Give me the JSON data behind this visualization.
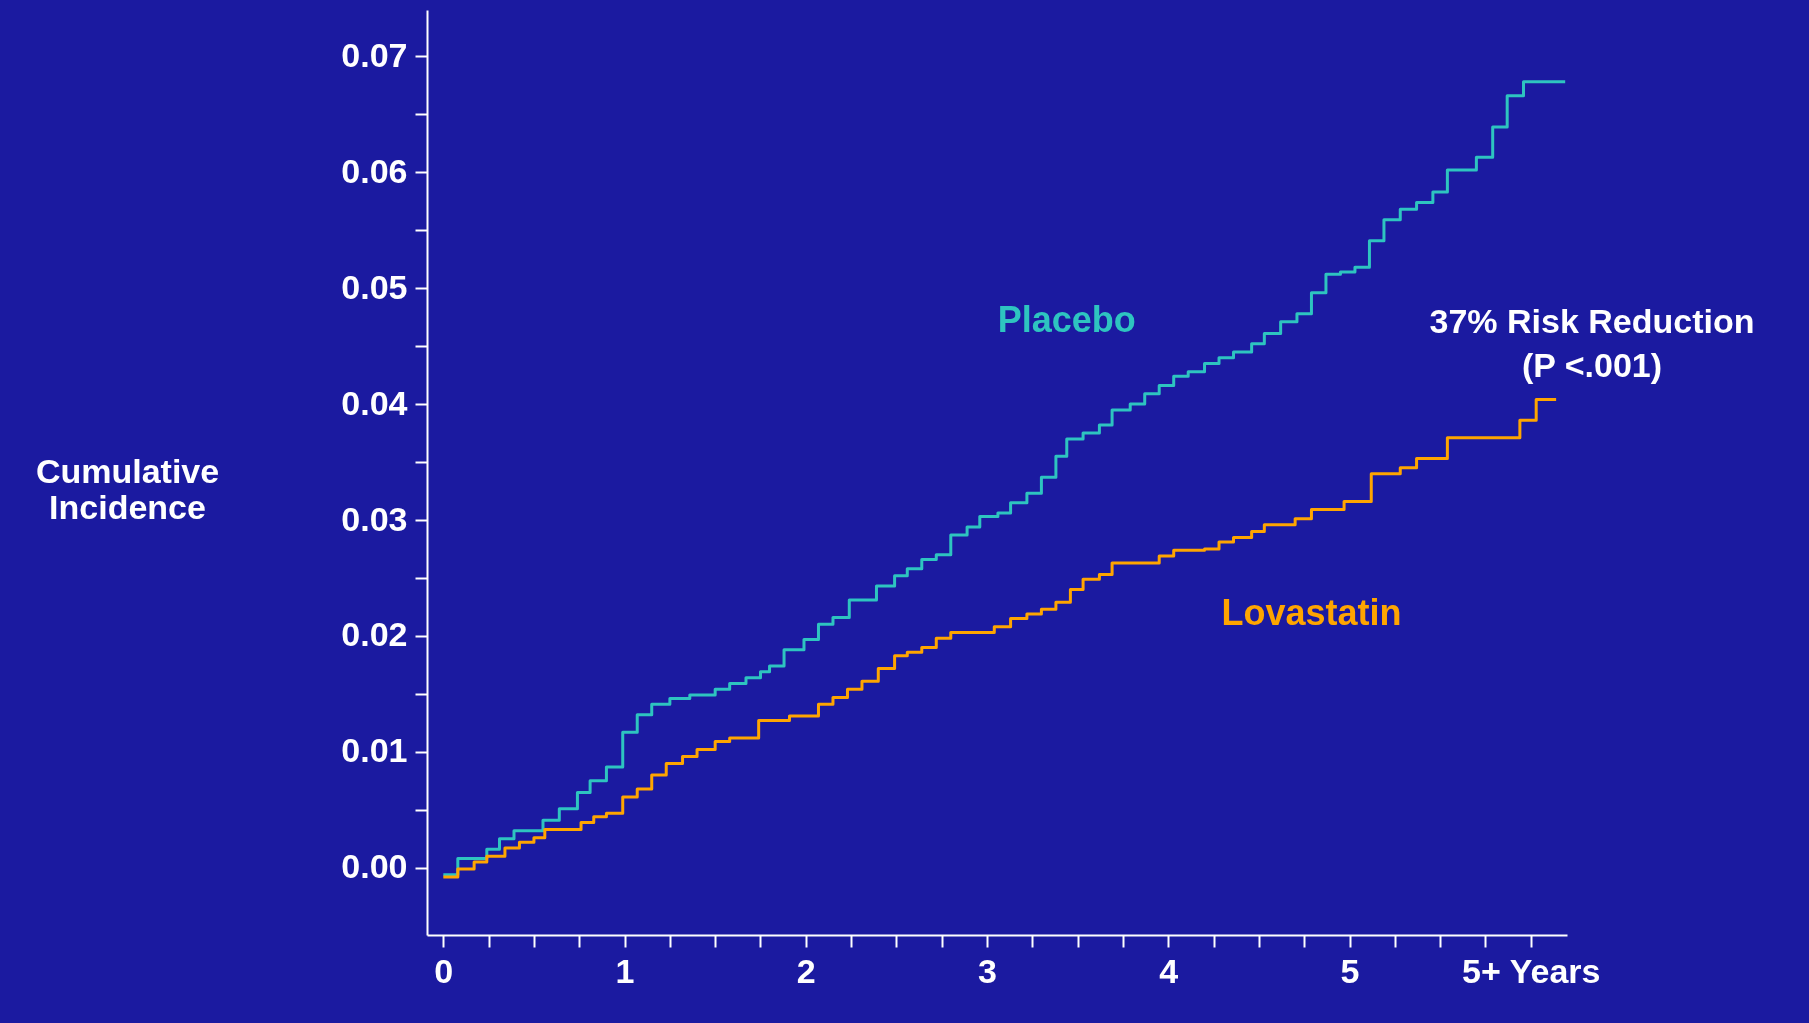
{
  "chart_data": {
    "type": "step",
    "ylabel": "Cumulative Incidence",
    "annotations": [
      "37% Risk Reduction\n(P <.001)"
    ],
    "xlim": [
      -0.09,
      6.2
    ],
    "ylim": [
      -0.0058,
      0.074
    ],
    "xticks": [
      0,
      {
        "value": 0.25,
        "label": null
      },
      {
        "value": 0.5,
        "label": null
      },
      {
        "value": 0.75,
        "label": null
      },
      1,
      {
        "value": 1.25,
        "label": null
      },
      {
        "value": 1.5,
        "label": null
      },
      {
        "value": 1.75,
        "label": null
      },
      2,
      {
        "value": 2.25,
        "label": null
      },
      {
        "value": 2.5,
        "label": null
      },
      {
        "value": 2.75,
        "label": null
      },
      3,
      {
        "value": 3.25,
        "label": null
      },
      {
        "value": 3.5,
        "label": null
      },
      {
        "value": 3.75,
        "label": null
      },
      4,
      {
        "value": 4.25,
        "label": null
      },
      {
        "value": 4.5,
        "label": null
      },
      {
        "value": 4.75,
        "label": null
      },
      5,
      {
        "value": 5.25,
        "label": null
      },
      {
        "value": 5.5,
        "label": null
      },
      {
        "value": 5.75,
        "label": null
      },
      {
        "value": 6,
        "label": "5+ Years"
      }
    ],
    "yticks": [
      {
        "value": 0,
        "label": "0.00"
      },
      {
        "value": 0.005,
        "label": null
      },
      {
        "value": 0.01,
        "label": "0.01"
      },
      {
        "value": 0.015,
        "label": null
      },
      {
        "value": 0.02,
        "label": "0.02"
      },
      {
        "value": 0.025,
        "label": null
      },
      {
        "value": 0.03,
        "label": "0.03"
      },
      {
        "value": 0.035,
        "label": null
      },
      {
        "value": 0.04,
        "label": "0.04"
      },
      {
        "value": 0.045,
        "label": null
      },
      {
        "value": 0.05,
        "label": "0.05"
      },
      {
        "value": 0.055,
        "label": null
      },
      {
        "value": 0.06,
        "label": "0.06"
      },
      {
        "value": 0.065,
        "label": null
      },
      {
        "value": 0.07,
        "label": "0.07"
      }
    ],
    "grid": false,
    "series": [
      {
        "name": "Placebo",
        "color": "#2ec4c0",
        "x": [
          0,
          0.08,
          0.24,
          0.31,
          0.39,
          0.55,
          0.64,
          0.74,
          0.81,
          0.9,
          0.99,
          1.07,
          1.15,
          1.25,
          1.36,
          1.5,
          1.58,
          1.67,
          1.75,
          1.8,
          1.88,
          1.99,
          2.07,
          2.15,
          2.24,
          2.39,
          2.49,
          2.56,
          2.64,
          2.72,
          2.8,
          2.89,
          2.96,
          3.06,
          3.13,
          3.22,
          3.3,
          3.38,
          3.44,
          3.53,
          3.62,
          3.69,
          3.79,
          3.87,
          3.95,
          4.03,
          4.11,
          4.2,
          4.28,
          4.36,
          4.46,
          4.53,
          4.62,
          4.71,
          4.79,
          4.87,
          4.95,
          5.03,
          5.11,
          5.19,
          5.28,
          5.37,
          5.46,
          5.54,
          5.7,
          5.79,
          5.87,
          5.96,
          6.19
        ],
        "values": [
          -0.0006,
          0.0008,
          0.0016,
          0.0025,
          0.0032,
          0.0041,
          0.0051,
          0.0065,
          0.0075,
          0.0087,
          0.0117,
          0.0132,
          0.0141,
          0.0146,
          0.0149,
          0.0154,
          0.0159,
          0.0164,
          0.0169,
          0.0174,
          0.0188,
          0.0197,
          0.021,
          0.0216,
          0.0231,
          0.0243,
          0.0252,
          0.0258,
          0.0266,
          0.027,
          0.0287,
          0.0294,
          0.0303,
          0.0306,
          0.0315,
          0.0323,
          0.0337,
          0.0355,
          0.037,
          0.0375,
          0.0382,
          0.0395,
          0.04,
          0.0409,
          0.0416,
          0.0424,
          0.0428,
          0.0435,
          0.044,
          0.0445,
          0.0452,
          0.0461,
          0.0471,
          0.0478,
          0.0496,
          0.0512,
          0.0514,
          0.0518,
          0.0541,
          0.0559,
          0.0568,
          0.0574,
          0.0583,
          0.0602,
          0.0613,
          0.0639,
          0.0666,
          0.0678,
          0.0678
        ]
      },
      {
        "name": "Lovastatin",
        "color": "#ffa500",
        "x": [
          0,
          0.08,
          0.17,
          0.24,
          0.34,
          0.42,
          0.5,
          0.56,
          0.76,
          0.83,
          0.9,
          0.99,
          1.07,
          1.15,
          1.23,
          1.32,
          1.4,
          1.5,
          1.58,
          1.74,
          1.91,
          2.07,
          2.15,
          2.23,
          2.31,
          2.4,
          2.49,
          2.56,
          2.64,
          2.72,
          2.8,
          3.04,
          3.13,
          3.22,
          3.3,
          3.38,
          3.46,
          3.53,
          3.62,
          3.69,
          3.95,
          4.03,
          4.2,
          4.28,
          4.36,
          4.46,
          4.53,
          4.7,
          4.79,
          4.97,
          5.12,
          5.28,
          5.37,
          5.54,
          5.94,
          6.03,
          6.14
        ],
        "values": [
          -0.0008,
          -0.0001,
          0.0005,
          0.001,
          0.0017,
          0.0022,
          0.0026,
          0.0033,
          0.0039,
          0.0044,
          0.0047,
          0.0061,
          0.0068,
          0.008,
          0.009,
          0.0096,
          0.0102,
          0.0109,
          0.0112,
          0.0127,
          0.0131,
          0.0141,
          0.0147,
          0.0154,
          0.0161,
          0.0172,
          0.0183,
          0.0186,
          0.019,
          0.0198,
          0.0203,
          0.0208,
          0.0215,
          0.0219,
          0.0223,
          0.0229,
          0.024,
          0.0249,
          0.0253,
          0.0263,
          0.0269,
          0.0274,
          0.0275,
          0.0281,
          0.0285,
          0.029,
          0.0296,
          0.0301,
          0.0309,
          0.0316,
          0.034,
          0.0345,
          0.0353,
          0.0371,
          0.0386,
          0.0404,
          0.0404
        ]
      }
    ]
  }
}
